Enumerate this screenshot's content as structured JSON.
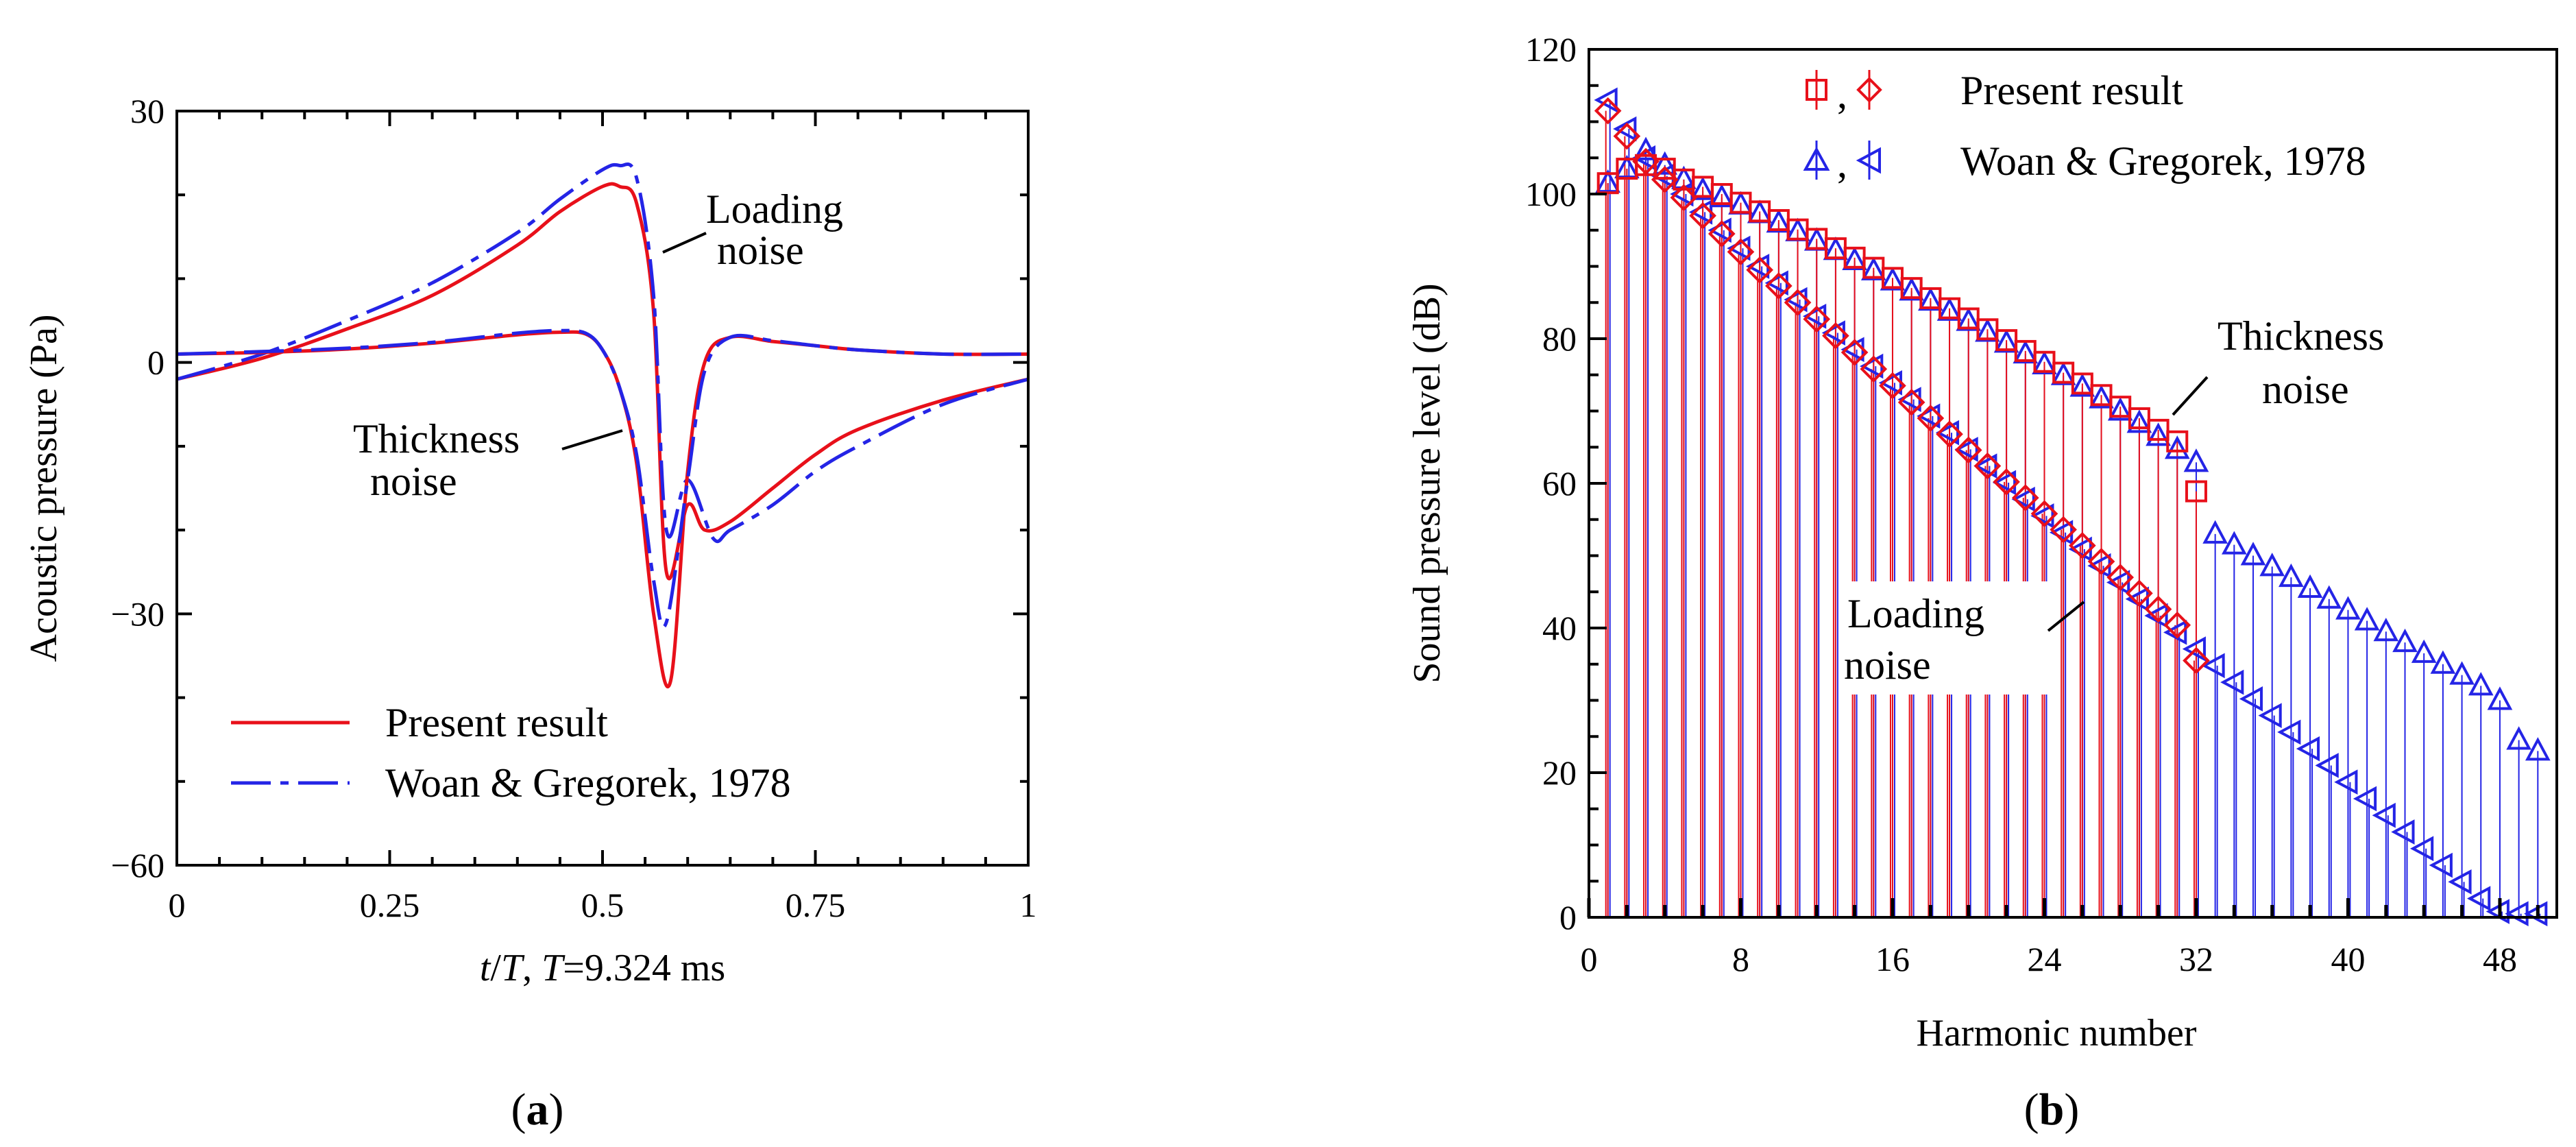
{
  "figure": {
    "panel_a_label": "(a)",
    "panel_a_letter": "a",
    "panel_b_label": "(b)",
    "panel_b_letter": "b"
  },
  "chart_data": [
    {
      "type": "line",
      "panel": "a",
      "title": "",
      "xlabel": "t/T, T=9.324 ms",
      "xlabel_parts": {
        "t": "t",
        "slashT": "/",
        "T": "T",
        "comma": ", ",
        "T2": "T",
        "rest": "=9.324 ms"
      },
      "ylabel": "Acoustic pressure (Pa)",
      "xlim": [
        0,
        1
      ],
      "ylim": [
        -60,
        30
      ],
      "xticks": [
        0,
        0.25,
        0.5,
        0.75,
        1
      ],
      "xtick_labels": [
        "0",
        "0.25",
        "0.5",
        "0.75",
        "1"
      ],
      "yticks": [
        30,
        0,
        -30,
        -60
      ],
      "ytick_labels": [
        "30",
        "0",
        "−30",
        "−60"
      ],
      "legend": [
        "Present result",
        "Woan & Gregorek, 1978"
      ],
      "legend_position": "lower-left",
      "annotations": [
        {
          "text": "Loading",
          "text2": "noise"
        },
        {
          "text": "Thickness",
          "text2": "noise"
        }
      ],
      "series": [
        {
          "name": "Present result (loading noise)",
          "style": "solid",
          "color": "#e8101a",
          "x": [
            0,
            0.1,
            0.2,
            0.3,
            0.4,
            0.45,
            0.5,
            0.52,
            0.54,
            0.56,
            0.575,
            0.6,
            0.62,
            0.65,
            0.7,
            0.75,
            0.8,
            0.9,
            1.0
          ],
          "y": [
            -2,
            0.5,
            4,
            8,
            14,
            18,
            21,
            21,
            19,
            6,
            -25,
            -17,
            -20,
            -19,
            -15,
            -11,
            -8,
            -4.5,
            -2
          ]
        },
        {
          "name": "Woan & Gregorek, 1978 (loading noise)",
          "style": "dashed",
          "color": "#2424e6",
          "x": [
            0,
            0.1,
            0.2,
            0.3,
            0.4,
            0.45,
            0.5,
            0.52,
            0.54,
            0.56,
            0.575,
            0.6,
            0.63,
            0.65,
            0.7,
            0.75,
            0.8,
            0.9,
            1.0
          ],
          "y": [
            -2,
            1,
            5,
            9.5,
            15.5,
            19.5,
            23,
            23.5,
            22,
            8,
            -20,
            -14,
            -21,
            -20,
            -17,
            -13,
            -10,
            -5,
            -2
          ]
        },
        {
          "name": "Present result (thickness noise)",
          "style": "solid",
          "color": "#e8101a",
          "x": [
            0,
            0.1,
            0.2,
            0.3,
            0.4,
            0.45,
            0.48,
            0.5,
            0.52,
            0.54,
            0.56,
            0.58,
            0.6,
            0.62,
            0.65,
            0.7,
            0.75,
            0.8,
            0.9,
            1.0
          ],
          "y": [
            1,
            1.2,
            1.6,
            2.3,
            3.3,
            3.6,
            3.4,
            1.5,
            -3,
            -12,
            -30,
            -38,
            -13,
            0,
            3,
            2.5,
            2,
            1.5,
            1,
            1
          ]
        },
        {
          "name": "Woan & Gregorek, 1978 (thickness noise)",
          "style": "dashed",
          "color": "#2424e6",
          "x": [
            0,
            0.1,
            0.2,
            0.3,
            0.4,
            0.45,
            0.48,
            0.5,
            0.52,
            0.54,
            0.56,
            0.575,
            0.6,
            0.62,
            0.65,
            0.7,
            0.75,
            0.8,
            0.9,
            1.0
          ],
          "y": [
            1,
            1.3,
            1.7,
            2.4,
            3.5,
            3.8,
            3.5,
            1.5,
            -3,
            -11,
            -26,
            -31,
            -14,
            -1,
            3,
            2.6,
            2,
            1.5,
            1,
            1
          ]
        }
      ]
    },
    {
      "type": "scatter",
      "panel": "b",
      "title": "",
      "xlabel": "Harmonic number",
      "ylabel": "Sound pressure level (dB)",
      "xlim": [
        0,
        51
      ],
      "ylim": [
        0,
        120
      ],
      "xticks": [
        0,
        8,
        16,
        24,
        32,
        40,
        48
      ],
      "xtick_labels": [
        "0",
        "8",
        "16",
        "24",
        "32",
        "40",
        "48"
      ],
      "yticks": [
        0,
        20,
        40,
        60,
        80,
        100,
        120
      ],
      "ytick_labels": [
        "0",
        "20",
        "40",
        "60",
        "80",
        "100",
        "120"
      ],
      "legend": [
        "Present result",
        "Woan & Gregorek, 1978"
      ],
      "legend_separator": ",",
      "legend_position": "top-right",
      "annotations": [
        {
          "text": "Thickness",
          "text2": "noise"
        },
        {
          "text": "Loading",
          "text2": "noise"
        }
      ],
      "series": [
        {
          "name": "Present result (thickness noise)",
          "marker": "square",
          "color": "#e8101a",
          "x": [
            1,
            2,
            3,
            4,
            5,
            6,
            7,
            8,
            9,
            10,
            11,
            12,
            13,
            14,
            15,
            16,
            17,
            18,
            19,
            20,
            21,
            22,
            23,
            24,
            25,
            26,
            27,
            28,
            29,
            30,
            31,
            32
          ],
          "y": [
            101.5,
            103.5,
            104,
            103.5,
            102,
            101,
            100,
            98.8,
            97.6,
            96.4,
            95.1,
            93.8,
            92.5,
            91.2,
            89.8,
            88.4,
            87,
            85.6,
            84.2,
            82.8,
            81.3,
            79.8,
            78.3,
            76.8,
            75.3,
            73.8,
            72.2,
            70.6,
            69,
            67.4,
            65.8,
            58.9
          ]
        },
        {
          "name": "Present result (loading noise)",
          "marker": "diamond",
          "color": "#e8101a",
          "x": [
            1,
            2,
            3,
            4,
            5,
            6,
            7,
            8,
            9,
            10,
            11,
            12,
            13,
            14,
            15,
            16,
            17,
            18,
            19,
            20,
            21,
            22,
            23,
            24,
            25,
            26,
            27,
            28,
            29,
            30,
            31,
            32
          ],
          "y": [
            111.5,
            108,
            104.5,
            102,
            99.5,
            97,
            94.5,
            92,
            89.5,
            87.3,
            85,
            82.7,
            80.4,
            78.1,
            75.8,
            73.5,
            71.2,
            69,
            66.8,
            64.6,
            62.4,
            60.2,
            58,
            55.8,
            53.6,
            51.4,
            49.2,
            47,
            44.8,
            42.6,
            40.4,
            35.5
          ]
        },
        {
          "name": "Woan & Gregorek, 1978 (thickness noise)",
          "marker": "triangle-up",
          "color": "#2424e6",
          "x": [
            1,
            2,
            3,
            4,
            5,
            6,
            7,
            8,
            9,
            10,
            11,
            12,
            13,
            14,
            15,
            16,
            17,
            18,
            19,
            20,
            21,
            22,
            23,
            24,
            25,
            26,
            27,
            28,
            29,
            30,
            31,
            32,
            33,
            34,
            35,
            36,
            37,
            38,
            39,
            40,
            41,
            42,
            43,
            44,
            45,
            46,
            47,
            48,
            49,
            50
          ],
          "y": [
            101.5,
            103.5,
            106,
            104,
            102,
            100.5,
            99.5,
            98.5,
            97.3,
            96,
            94.8,
            93.5,
            92.2,
            90.8,
            89.4,
            88,
            86.6,
            85.2,
            83.8,
            82.4,
            80.9,
            79.4,
            77.9,
            76.4,
            74.9,
            73.3,
            71.7,
            70,
            68.3,
            66.5,
            64.7,
            62.9,
            53,
            51.5,
            50,
            48.5,
            47,
            45.5,
            44,
            42.5,
            41,
            39.5,
            38,
            36.5,
            35,
            33.5,
            32,
            30,
            24.5,
            23
          ]
        },
        {
          "name": "Woan & Gregorek, 1978 (loading noise)",
          "marker": "triangle-left",
          "color": "#2424e6",
          "x": [
            1,
            2,
            3,
            4,
            5,
            6,
            7,
            8,
            9,
            10,
            11,
            12,
            13,
            14,
            15,
            16,
            17,
            18,
            19,
            20,
            21,
            22,
            23,
            24,
            25,
            26,
            27,
            28,
            29,
            30,
            31,
            32,
            33,
            34,
            35,
            36,
            37,
            38,
            39,
            40,
            41,
            42,
            43,
            44,
            45,
            46,
            47,
            48,
            49,
            50
          ],
          "y": [
            113,
            109,
            105,
            102.5,
            100,
            97.5,
            95,
            92.5,
            90,
            87.7,
            85.4,
            83.1,
            80.8,
            78.5,
            76.2,
            73.9,
            71.6,
            69.3,
            67,
            64.7,
            62.4,
            60.1,
            57.8,
            55.5,
            53.2,
            50.9,
            48.6,
            46.3,
            44,
            41.7,
            39.4,
            37.1,
            34.8,
            32.5,
            30.2,
            27.9,
            25.6,
            23.3,
            21,
            18.7,
            16.4,
            14.1,
            11.8,
            9.5,
            7.2,
            4.9,
            2.6,
            0.8,
            0.5,
            0.5
          ]
        }
      ]
    }
  ]
}
